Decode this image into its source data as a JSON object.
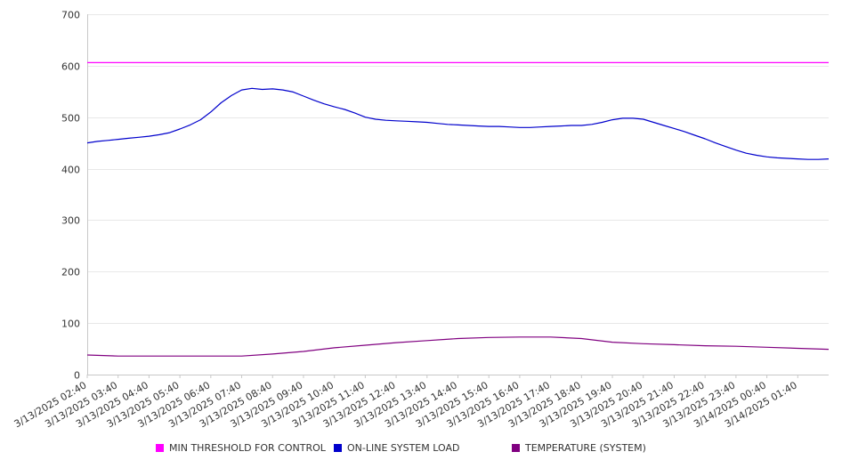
{
  "chart_data": {
    "type": "line",
    "title": "",
    "xlabel": "",
    "ylabel": "",
    "ylim": [
      0,
      700
    ],
    "y_ticks": [
      0,
      100,
      200,
      300,
      400,
      500,
      600,
      700
    ],
    "x_tick_labels": [
      "3/13/2025 02:40",
      "3/13/2025 03:40",
      "3/13/2025 04:40",
      "3/13/2025 05:40",
      "3/13/2025 06:40",
      "3/13/2025 07:40",
      "3/13/2025 08:40",
      "3/13/2025 09:40",
      "3/13/2025 10:40",
      "3/13/2025 11:40",
      "3/13/2025 12:40",
      "3/13/2025 13:40",
      "3/13/2025 14:40",
      "3/13/2025 15:40",
      "3/13/2025 16:40",
      "3/13/2025 17:40",
      "3/13/2025 18:40",
      "3/13/2025 19:40",
      "3/13/2025 20:40",
      "3/13/2025 21:40",
      "3/13/2025 22:40",
      "3/13/2025 23:40",
      "3/14/2025 00:40",
      "3/14/2025 01:40"
    ],
    "x_range": [
      "3/13/2025 02:40",
      "3/14/2025 02:40"
    ],
    "grid": true,
    "legend_position": "bottom",
    "series": [
      {
        "name": "MIN THRESHOLD FOR CONTROL",
        "color": "#ff00ff",
        "x": [
          "3/13/2025 02:40",
          "3/14/2025 02:40"
        ],
        "values": [
          606,
          606
        ]
      },
      {
        "name": "ON-LINE SYSTEM LOAD",
        "color": "#0000cc",
        "x": [
          "3/13/2025 02:40",
          "3/13/2025 03:00",
          "3/13/2025 03:20",
          "3/13/2025 03:40",
          "3/13/2025 04:00",
          "3/13/2025 04:20",
          "3/13/2025 04:40",
          "3/13/2025 05:00",
          "3/13/2025 05:20",
          "3/13/2025 05:40",
          "3/13/2025 06:00",
          "3/13/2025 06:20",
          "3/13/2025 06:40",
          "3/13/2025 07:00",
          "3/13/2025 07:20",
          "3/13/2025 07:40",
          "3/13/2025 08:00",
          "3/13/2025 08:20",
          "3/13/2025 08:40",
          "3/13/2025 09:00",
          "3/13/2025 09:20",
          "3/13/2025 09:40",
          "3/13/2025 10:00",
          "3/13/2025 10:20",
          "3/13/2025 10:40",
          "3/13/2025 11:00",
          "3/13/2025 11:20",
          "3/13/2025 11:40",
          "3/13/2025 12:00",
          "3/13/2025 12:20",
          "3/13/2025 12:40",
          "3/13/2025 13:00",
          "3/13/2025 13:20",
          "3/13/2025 13:40",
          "3/13/2025 14:00",
          "3/13/2025 14:20",
          "3/13/2025 14:40",
          "3/13/2025 15:00",
          "3/13/2025 15:20",
          "3/13/2025 15:40",
          "3/13/2025 16:00",
          "3/13/2025 16:20",
          "3/13/2025 16:40",
          "3/13/2025 17:00",
          "3/13/2025 17:20",
          "3/13/2025 17:40",
          "3/13/2025 18:00",
          "3/13/2025 18:20",
          "3/13/2025 18:40",
          "3/13/2025 19:00",
          "3/13/2025 19:20",
          "3/13/2025 19:40",
          "3/13/2025 20:00",
          "3/13/2025 20:20",
          "3/13/2025 20:40",
          "3/13/2025 21:00",
          "3/13/2025 21:20",
          "3/13/2025 21:40",
          "3/13/2025 22:00",
          "3/13/2025 22:20",
          "3/13/2025 22:40",
          "3/13/2025 23:00",
          "3/13/2025 23:20",
          "3/13/2025 23:40",
          "3/14/2025 00:00",
          "3/14/2025 00:20",
          "3/14/2025 00:40",
          "3/14/2025 01:00",
          "3/14/2025 01:20",
          "3/14/2025 01:40",
          "3/14/2025 02:00",
          "3/14/2025 02:20",
          "3/14/2025 02:40"
        ],
        "values": [
          450,
          453,
          455,
          457,
          459,
          461,
          463,
          466,
          470,
          477,
          485,
          495,
          510,
          528,
          542,
          553,
          556,
          554,
          555,
          553,
          549,
          541,
          533,
          526,
          520,
          515,
          508,
          500,
          496,
          494,
          493,
          492,
          491,
          490,
          488,
          486,
          485,
          484,
          483,
          482,
          482,
          481,
          480,
          480,
          481,
          482,
          483,
          484,
          484,
          486,
          490,
          495,
          498,
          498,
          496,
          490,
          484,
          478,
          472,
          465,
          458,
          450,
          443,
          436,
          430,
          426,
          423,
          421,
          420,
          419,
          418,
          418,
          419
        ]
      },
      {
        "name": "TEMPERATURE (SYSTEM)",
        "color": "#800080",
        "x": [
          "3/13/2025 02:40",
          "3/13/2025 03:40",
          "3/13/2025 04:40",
          "3/13/2025 05:40",
          "3/13/2025 06:40",
          "3/13/2025 07:40",
          "3/13/2025 08:40",
          "3/13/2025 09:40",
          "3/13/2025 10:40",
          "3/13/2025 11:40",
          "3/13/2025 12:40",
          "3/13/2025 13:40",
          "3/13/2025 14:40",
          "3/13/2025 15:40",
          "3/13/2025 16:40",
          "3/13/2025 17:40",
          "3/13/2025 18:40",
          "3/13/2025 19:40",
          "3/13/2025 20:40",
          "3/13/2025 21:40",
          "3/13/2025 22:40",
          "3/13/2025 23:40",
          "3/14/2025 00:40",
          "3/14/2025 01:40",
          "3/14/2025 02:40"
        ],
        "values": [
          38,
          36,
          36,
          36,
          36,
          36,
          40,
          45,
          52,
          57,
          62,
          66,
          70,
          72,
          73,
          73,
          70,
          63,
          60,
          58,
          56,
          55,
          53,
          51,
          49
        ]
      }
    ]
  }
}
